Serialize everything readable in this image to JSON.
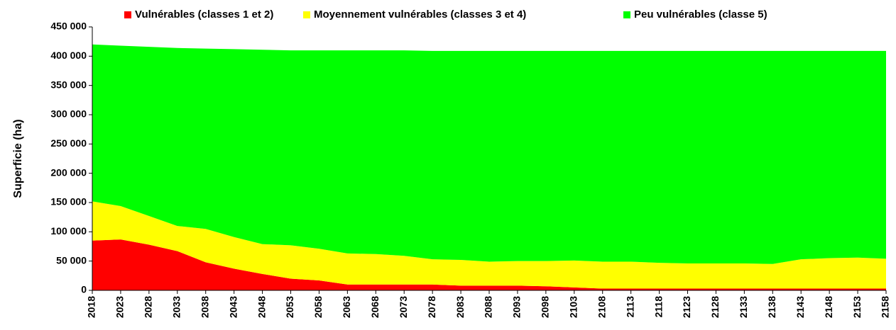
{
  "chart_data": {
    "type": "stacked_area",
    "y_label": "Superficie (ha)",
    "categories": [
      "2018",
      "2023",
      "2028",
      "2033",
      "2038",
      "2043",
      "2048",
      "2053",
      "2058",
      "2063",
      "2068",
      "2073",
      "2078",
      "2083",
      "2088",
      "2093",
      "2098",
      "2103",
      "2108",
      "2113",
      "2118",
      "2123",
      "2128",
      "2133",
      "2138",
      "2143",
      "2148",
      "2153",
      "2158"
    ],
    "series": [
      {
        "name": "Vulnérables (classes 1 et 2)",
        "color": "#ff0000",
        "values": [
          85000,
          87000,
          78000,
          67000,
          48000,
          37000,
          28000,
          20000,
          17000,
          10000,
          10000,
          10000,
          10000,
          8000,
          8000,
          8000,
          7000,
          5000,
          3000,
          3000,
          3000,
          3000,
          3000,
          3000,
          3000,
          3000,
          3000,
          3000,
          3000
        ]
      },
      {
        "name": "Moyennement vulnérables (classes 3 et 4)",
        "color": "#ffff00",
        "values": [
          67000,
          57000,
          49000,
          43000,
          57000,
          54000,
          51000,
          57000,
          54000,
          53000,
          52000,
          49000,
          43000,
          44000,
          41000,
          42000,
          43000,
          46000,
          46000,
          46000,
          44000,
          43000,
          43000,
          43000,
          42000,
          50000,
          52000,
          53000,
          51000
        ]
      },
      {
        "name": "Peu vulnérables (classe 5)",
        "color": "#00ff00",
        "values": [
          268000,
          274000,
          289000,
          304000,
          308000,
          321000,
          332000,
          333000,
          339000,
          347000,
          348000,
          351000,
          356000,
          357000,
          360000,
          359000,
          359000,
          358000,
          360000,
          360000,
          362000,
          363000,
          363000,
          363000,
          364000,
          356000,
          354000,
          353000,
          355000
        ]
      }
    ],
    "ylim": [
      0,
      450000
    ],
    "yticks": [
      0,
      {
        "value": 50000,
        "label": "50 000"
      },
      {
        "value": 100000,
        "label": "100 000"
      },
      {
        "value": 150000,
        "label": "150 000"
      },
      {
        "value": 200000,
        "label": "200 000"
      },
      {
        "value": 250000,
        "label": "250 000"
      },
      {
        "value": 300000,
        "label": "300 000"
      },
      {
        "value": 350000,
        "label": "350 000"
      },
      {
        "value": 400000,
        "label": "400 000"
      },
      {
        "value": 450000,
        "label": "450 000"
      }
    ],
    "legend": "top"
  }
}
